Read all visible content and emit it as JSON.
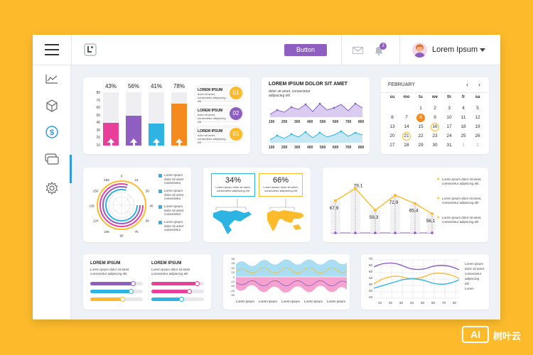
{
  "header": {
    "button_label": "Button",
    "notification_count": "3",
    "user_name": "Lorem Ipsum"
  },
  "sidebar": {
    "items": [
      {
        "icon": "chart-line-icon"
      },
      {
        "icon": "cube-icon"
      },
      {
        "icon": "dollar-icon",
        "active": true
      },
      {
        "icon": "cards-icon"
      },
      {
        "icon": "gear-icon"
      }
    ]
  },
  "bars_card": {
    "percents": [
      "43%",
      "56%",
      "41%",
      "78%"
    ],
    "y_ticks": [
      "80",
      "70",
      "60",
      "50",
      "40",
      "30",
      "20",
      "10"
    ],
    "colors": [
      "#e93f9b",
      "#8e5fc1",
      "#2eb4e3",
      "#f58a1f"
    ],
    "legend": [
      {
        "title": "LOREM IPSUM",
        "text": "dolor sit amet, consectetur adipiscing elit",
        "num": "01",
        "color": "#fdbb2c"
      },
      {
        "title": "LOREM IPSUM",
        "text": "dolor sit amet, consectetur adipiscing elit",
        "num": "02",
        "color": "#8e5fc1"
      },
      {
        "title": "LOREM IPSUM",
        "text": "dolor sit amet, consectetur adipiscing elit",
        "num": "03",
        "color": "#fdbb2c"
      }
    ]
  },
  "area_card": {
    "title": "LOREM IPSUM DOLOR SIT AMET",
    "subtitle": "dolor sit amet, consectetur adipiscing elit",
    "x_ticks": [
      "100",
      "200",
      "300",
      "400",
      "500",
      "600",
      "700",
      "800"
    ]
  },
  "calendar": {
    "month": "FEBRUARY",
    "days": [
      "su",
      "mo",
      "tu",
      "we",
      "th",
      "fr",
      "sa"
    ],
    "weeks": [
      [
        "",
        "",
        "1",
        "2",
        "3",
        "4",
        "5"
      ],
      [
        "6",
        "7",
        "8",
        "9",
        "10",
        "11",
        "12"
      ],
      [
        "13",
        "14",
        "15",
        "16",
        "17",
        "18",
        "19"
      ],
      [
        "20",
        "21",
        "22",
        "23",
        "24",
        "25",
        "26"
      ],
      [
        "27",
        "28",
        "29",
        "30",
        "31",
        "1",
        "2"
      ]
    ],
    "highlighted": "8",
    "circled": [
      "16",
      "21"
    ]
  },
  "radial_card": {
    "labels": [
      "0",
      "15",
      "30",
      "45",
      "60",
      "75",
      "90",
      "105",
      "120",
      "135",
      "150",
      "165"
    ],
    "legend": [
      {
        "text": "Lorem ipsum dolor sit amet consectetur",
        "color": "#2eb4e3"
      },
      {
        "text": "Lorem ipsum dolor sit amet consectetur",
        "color": "#2eb4e3"
      },
      {
        "text": "Lorem ipsum dolor sit amet consectetur",
        "color": "#2eb4e3"
      },
      {
        "text": "Lorem ipsum dolor sit amet consectetur",
        "color": "#2eb4e3"
      }
    ]
  },
  "map_card": {
    "left_pct": "34%",
    "left_text": "Lorem ipsum dolor sit amet, consectetur adipiscing elit",
    "right_pct": "66%",
    "right_text": "Lorem ipsum dolor sit amet, consectetur adipiscing elit"
  },
  "line_card": {
    "values": [
      "67,9",
      "79,1",
      "59,3",
      "72,9",
      "65,4",
      "56,1"
    ],
    "legend": [
      "Lorem ipsum dolor sit amet, consectetur adipiscing elit",
      "Lorem ipsum dolor sit amet, consectetur adipiscing elit",
      "Lorem ipsum dolor sit amet, consectetur adipiscing elit"
    ]
  },
  "progress_card": {
    "col1_title": "LOREM IPSUM",
    "col1_text": "Lorem ipsum dolor sit amet consectetur adipiscing elit",
    "col2_title": "LOREM IPSUM",
    "col2_text": "Lorem ipsum dolor sit amet consectetur adipiscing elit",
    "bars": [
      {
        "color": "#8e5fc1",
        "fill": 0.8
      },
      {
        "color": "#2eb4e3",
        "fill": 0.75
      },
      {
        "color": "#fdbb2c",
        "fill": 0.6
      },
      {
        "color": "#e93f9b",
        "fill": 0.85
      },
      {
        "color": "#e93f9b",
        "fill": 0.7
      },
      {
        "color": "#2eb4e3",
        "fill": 0.55
      }
    ]
  },
  "wave_card": {
    "y_ticks": [
      "30",
      "25",
      "20",
      "10",
      "0",
      "-10",
      "-15",
      "-20",
      "-30"
    ],
    "labels": [
      "Lorem ipsum",
      "Lorem ipsum",
      "Lorem ipsum",
      "Lorem ipsum",
      "Lorem ipsum"
    ]
  },
  "multiline_card": {
    "y_ticks": [
      "70",
      "60",
      "50",
      "40",
      "30",
      "20",
      "10"
    ],
    "x_ticks": [
      "10",
      "20",
      "30",
      "40",
      "50",
      "60",
      "70",
      "80"
    ],
    "legend": [
      "Lorem ipsum",
      "dolor sit amet",
      "consectetur",
      "adipiscing",
      "elit",
      "Lorem"
    ]
  },
  "watermark": {
    "badge": "AI",
    "text": "树叶云"
  }
}
